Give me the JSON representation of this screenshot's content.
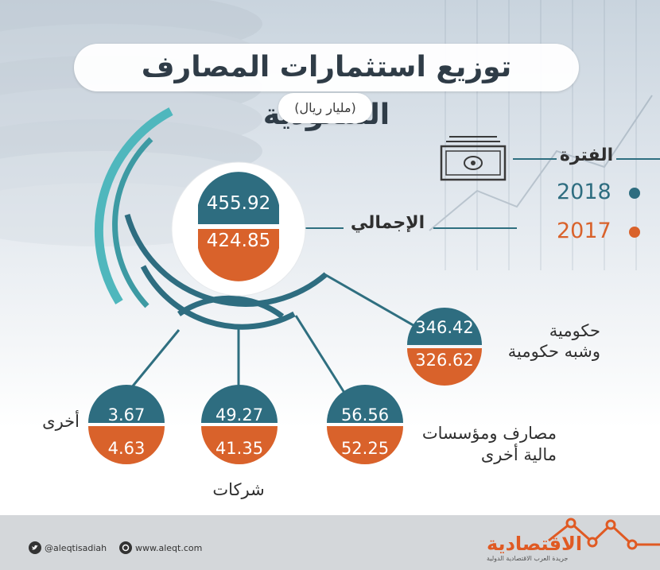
{
  "title": "توزيع استثمارات المصارف السعودية",
  "unit": "(مليار ريال)",
  "legend": {
    "header": "الفترة",
    "items": [
      {
        "year": "2018",
        "color": "#2e6d80"
      },
      {
        "year": "2017",
        "color": "#d9622b"
      }
    ]
  },
  "total": {
    "label": "الإجمالي",
    "v2018": "455.92",
    "v2017": "424.85"
  },
  "categories": [
    {
      "id": "government",
      "label_line1": "حكومية",
      "label_line2": "وشبه حكومية",
      "v2018": "346.42",
      "v2017": "326.62"
    },
    {
      "id": "banks",
      "label_line1": "مصارف ومؤسسات",
      "label_line2": "مالية أخرى",
      "v2018": "56.56",
      "v2017": "52.25"
    },
    {
      "id": "companies",
      "label_line1": "شركات",
      "label_line2": "",
      "v2018": "49.27",
      "v2017": "41.35"
    },
    {
      "id": "other",
      "label_line1": "أخرى",
      "label_line2": "",
      "v2018": "3.67",
      "v2017": "4.63"
    }
  ],
  "footer": {
    "twitter": "@aleqtisadiah",
    "website": "www.aleqt.com",
    "brand": "الاقتصادية",
    "brand_sub": "جريدة العرب الاقتصادية الدولية"
  },
  "colors": {
    "teal": "#2e6d80",
    "orange": "#d9622b",
    "arc_light": "#4fb7bd",
    "line": "#2f6f80"
  }
}
